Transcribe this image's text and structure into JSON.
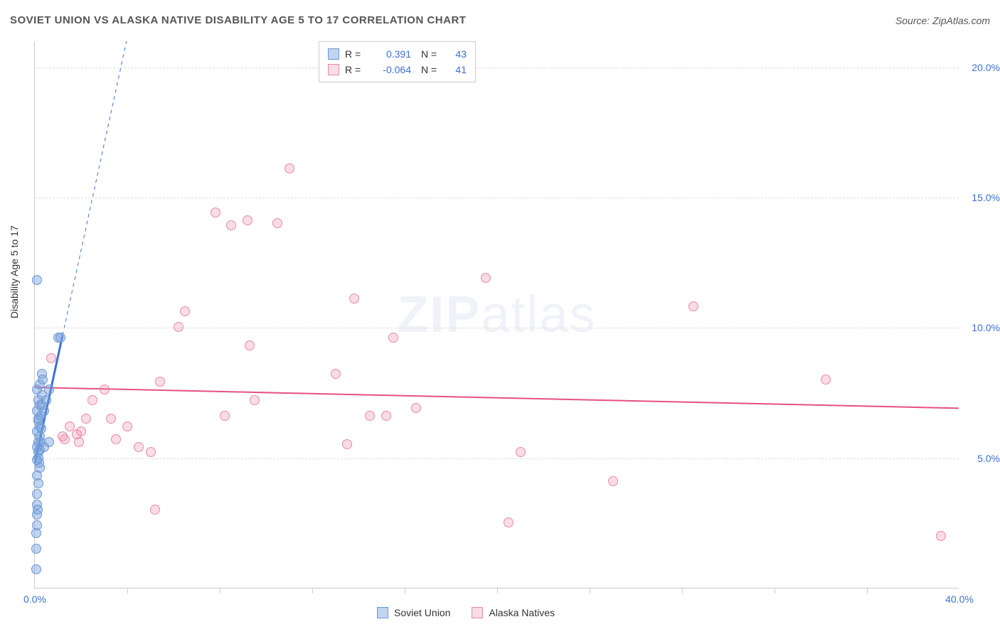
{
  "title": "SOVIET UNION VS ALASKA NATIVE DISABILITY AGE 5 TO 17 CORRELATION CHART",
  "source": "Source: ZipAtlas.com",
  "y_axis_label": "Disability Age 5 to 17",
  "watermark_bold": "ZIP",
  "watermark_light": "atlas",
  "chart": {
    "type": "scatter",
    "xlim": [
      0,
      40
    ],
    "ylim": [
      0,
      21
    ],
    "x_ticks": [
      0,
      40
    ],
    "x_tick_labels": [
      "0.0%",
      "40.0%"
    ],
    "x_minor_ticks": [
      4,
      8,
      12,
      16,
      20,
      24,
      28,
      32,
      36
    ],
    "y_ticks": [
      5,
      10,
      15,
      20
    ],
    "y_tick_labels": [
      "5.0%",
      "10.0%",
      "15.0%",
      "20.0%"
    ],
    "grid_color": "#dddddd",
    "axis_color": "#cccccc",
    "background_color": "#ffffff",
    "marker_size": 14,
    "series": [
      {
        "name": "Soviet Union",
        "color_fill": "rgba(120,160,220,0.45)",
        "color_stroke": "#6a98d8",
        "correlation_R": "0.391",
        "correlation_N": "43",
        "trend": {
          "x1": 0,
          "y1": 4.8,
          "x2": 1.2,
          "y2": 9.7,
          "solid_until_x": 1.2,
          "dash_to_x": 6.5,
          "dash_to_y": 31,
          "color": "#3b6fd4",
          "width_solid": 3,
          "width_dash": 1
        },
        "points": [
          [
            0.05,
            0.7
          ],
          [
            0.05,
            2.1
          ],
          [
            0.1,
            2.8
          ],
          [
            0.1,
            3.2
          ],
          [
            0.1,
            3.6
          ],
          [
            0.15,
            4.0
          ],
          [
            0.1,
            4.3
          ],
          [
            0.2,
            4.6
          ],
          [
            0.1,
            4.9
          ],
          [
            0.15,
            5.2
          ],
          [
            0.1,
            5.4
          ],
          [
            0.25,
            5.6
          ],
          [
            0.15,
            5.6
          ],
          [
            0.2,
            5.8
          ],
          [
            0.1,
            6.0
          ],
          [
            0.2,
            6.2
          ],
          [
            0.15,
            6.4
          ],
          [
            0.25,
            6.6
          ],
          [
            0.1,
            6.8
          ],
          [
            0.2,
            7.0
          ],
          [
            0.15,
            7.2
          ],
          [
            0.3,
            7.4
          ],
          [
            0.1,
            7.6
          ],
          [
            0.2,
            7.8
          ],
          [
            0.35,
            8.0
          ],
          [
            0.15,
            5.0
          ],
          [
            0.4,
            5.4
          ],
          [
            0.6,
            5.6
          ],
          [
            0.4,
            6.8
          ],
          [
            0.5,
            7.2
          ],
          [
            0.6,
            7.6
          ],
          [
            0.3,
            8.2
          ],
          [
            0.1,
            11.8
          ],
          [
            1.0,
            9.6
          ],
          [
            1.1,
            9.6
          ],
          [
            0.05,
            1.5
          ],
          [
            0.08,
            2.4
          ],
          [
            0.12,
            3.0
          ],
          [
            0.18,
            4.8
          ],
          [
            0.22,
            5.3
          ],
          [
            0.28,
            6.1
          ],
          [
            0.14,
            6.5
          ],
          [
            0.32,
            7.0
          ]
        ]
      },
      {
        "name": "Alaska Natives",
        "color_fill": "rgba(240,140,170,0.30)",
        "color_stroke": "#e88aa8",
        "correlation_R": "-0.064",
        "correlation_N": "41",
        "trend": {
          "x1": 0,
          "y1": 7.7,
          "x2": 40,
          "y2": 6.9,
          "color": "#e64f87",
          "width": 2
        },
        "points": [
          [
            0.7,
            8.8
          ],
          [
            1.2,
            5.8
          ],
          [
            1.3,
            5.7
          ],
          [
            1.5,
            6.2
          ],
          [
            1.8,
            5.9
          ],
          [
            1.9,
            5.6
          ],
          [
            2.0,
            6.0
          ],
          [
            2.2,
            6.5
          ],
          [
            2.5,
            7.2
          ],
          [
            3.0,
            7.6
          ],
          [
            3.3,
            6.5
          ],
          [
            3.5,
            5.7
          ],
          [
            4.0,
            6.2
          ],
          [
            4.5,
            5.4
          ],
          [
            5.0,
            5.2
          ],
          [
            5.2,
            3.0
          ],
          [
            5.4,
            7.9
          ],
          [
            6.2,
            10.0
          ],
          [
            6.5,
            10.6
          ],
          [
            7.8,
            14.4
          ],
          [
            8.2,
            6.6
          ],
          [
            8.5,
            13.9
          ],
          [
            9.2,
            14.1
          ],
          [
            9.3,
            9.3
          ],
          [
            9.5,
            7.2
          ],
          [
            10.5,
            14.0
          ],
          [
            11.0,
            16.1
          ],
          [
            13.0,
            8.2
          ],
          [
            13.5,
            5.5
          ],
          [
            13.8,
            11.1
          ],
          [
            14.5,
            6.6
          ],
          [
            15.2,
            6.6
          ],
          [
            15.5,
            9.6
          ],
          [
            16.5,
            6.9
          ],
          [
            19.5,
            11.9
          ],
          [
            20.5,
            2.5
          ],
          [
            21.0,
            5.2
          ],
          [
            25.0,
            4.1
          ],
          [
            28.5,
            10.8
          ],
          [
            34.2,
            8.0
          ],
          [
            39.2,
            2.0
          ]
        ]
      }
    ]
  },
  "legend_top": {
    "rows": [
      {
        "swatch": "blue",
        "R_label": "R =",
        "R": "0.391",
        "N_label": "N =",
        "N": "43"
      },
      {
        "swatch": "pink",
        "R_label": "R =",
        "R": "-0.064",
        "N_label": "N =",
        "N": "41"
      }
    ]
  },
  "legend_bottom": {
    "items": [
      {
        "swatch": "blue",
        "label": "Soviet Union"
      },
      {
        "swatch": "pink",
        "label": "Alaska Natives"
      }
    ]
  }
}
